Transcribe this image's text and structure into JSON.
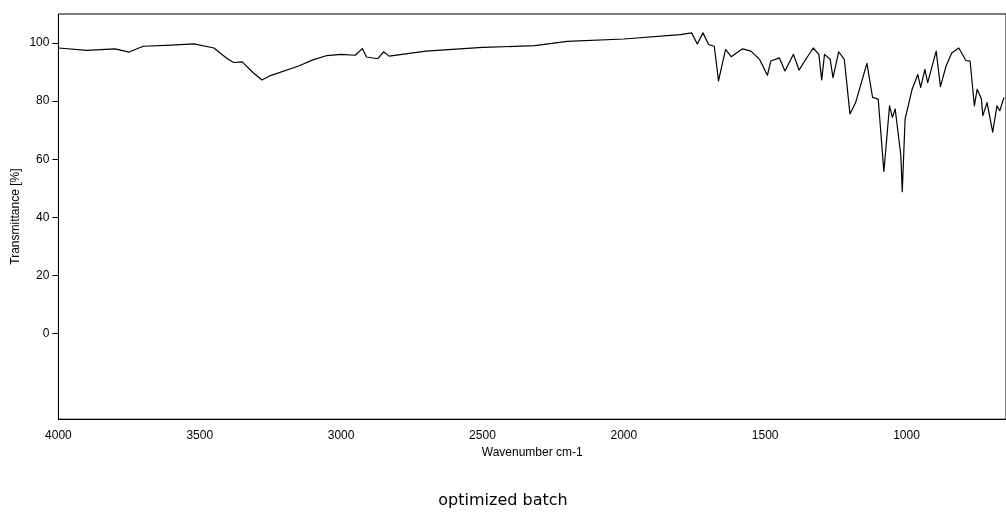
{
  "chart_data": {
    "type": "line",
    "xlabel": "Wavenumber cm-1",
    "ylabel": "Transmittance [%]",
    "annotations": [
      "optimized batch"
    ],
    "xlim": [
      4000,
      648
    ],
    "ylim": [
      -29.5,
      110
    ],
    "xticks": [
      4000,
      3500,
      3000,
      2500,
      2000,
      1500,
      1000
    ],
    "yticks": [
      0,
      20,
      40,
      60,
      80,
      100
    ],
    "grid": false,
    "legend": false,
    "marker": "none",
    "line_style": "solid",
    "series": [
      {
        "color": "#000000",
        "x": [
          4000,
          3900,
          3800,
          3750,
          3700,
          3600,
          3520,
          3450,
          3400,
          3380,
          3350,
          3310,
          3280,
          3250,
          3150,
          3100,
          3050,
          3000,
          2950,
          2925,
          2910,
          2870,
          2850,
          2830,
          2700,
          2500,
          2471,
          2315,
          2200,
          2000,
          1800,
          1760,
          1740,
          1720,
          1700,
          1680,
          1665,
          1640,
          1620,
          1580,
          1550,
          1520,
          1492,
          1480,
          1450,
          1430,
          1400,
          1380,
          1360,
          1330,
          1310,
          1300,
          1290,
          1270,
          1260,
          1240,
          1220,
          1200,
          1180,
          1140,
          1120,
          1100,
          1080,
          1060,
          1050,
          1040,
          1020,
          1015,
          1005,
          980,
          960,
          950,
          935,
          925,
          895,
          880,
          860,
          840,
          815,
          790,
          775,
          760,
          750,
          735,
          730,
          715,
          695,
          680,
          670,
          655
        ],
        "values": [
          98.3,
          97.5,
          98,
          96.9,
          98.9,
          99.3,
          99.7,
          98.3,
          94.4,
          93.3,
          93.5,
          89.7,
          87.3,
          88.8,
          92.1,
          94.2,
          95.7,
          96.1,
          95.8,
          98.1,
          95.2,
          94.6,
          97,
          95.5,
          97.2,
          98.5,
          98.6,
          99.1,
          100.6,
          101.4,
          102.9,
          103.5,
          99.7,
          103.5,
          99.5,
          98.9,
          87,
          97.8,
          95.3,
          98,
          97.2,
          94.4,
          88.9,
          93.8,
          94.9,
          90.4,
          96.1,
          90.7,
          93.8,
          98.3,
          96.1,
          87.3,
          96.1,
          94.4,
          88.1,
          97,
          94.4,
          75.6,
          79.5,
          93,
          81.3,
          80.7,
          55.8,
          78.4,
          74.4,
          77.3,
          61.3,
          48.8,
          73.8,
          84.1,
          89.2,
          84.7,
          90.9,
          86.4,
          97.2,
          85,
          92.1,
          96.6,
          98.3,
          94,
          93.8,
          78.4,
          84.1,
          80.7,
          75,
          79.5,
          69.3,
          78.4,
          76.7,
          81.3
        ]
      }
    ]
  }
}
